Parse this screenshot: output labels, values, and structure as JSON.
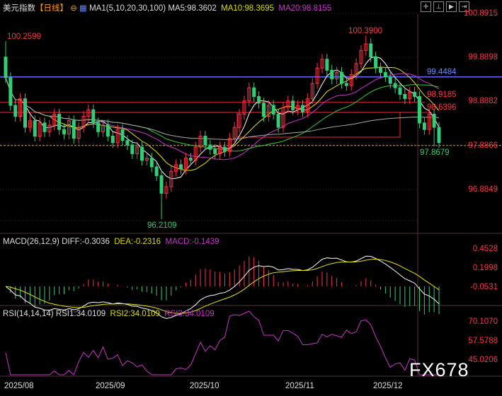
{
  "header": {
    "title": "美元指数",
    "period": "【日线】",
    "ma_label": "MA1(5,10,20,30,100)",
    "ma5": "MA5:98.3602",
    "ma10": "MA10:98.3695",
    "ma20": "MA20:98.8155",
    "buttons": [
      "crosshair",
      "fit",
      "play",
      "next"
    ]
  },
  "macd_header": {
    "label": "MACD(26,12,9)",
    "diff": "DIFF:-0.3036",
    "dea": "DEA:-0.2316",
    "macd": "MACD:-0.1439"
  },
  "rsi_header": {
    "label": "RSI(14,14,14)",
    "rsi1": "RSI1:34.0109",
    "rsi2": "RSI2:34.0109",
    "rsi3": "RSI3:34.0109"
  },
  "colors": {
    "up": "#ff3344",
    "down": "#33cc77",
    "ma5": "#ffffff",
    "ma10": "#e6e600",
    "ma20": "#cc33cc",
    "ma30": "#33cc33",
    "ma100": "#aaaaaa",
    "blue_line": "#6666ff"
  },
  "chart_data": {
    "type": "candlestick",
    "price_axis": [
      "100.8915",
      "99.8898",
      "98.8882",
      "97.8866",
      "96.8849"
    ],
    "ylim": [
      95.9,
      101.1
    ],
    "closes": [
      99.43,
      98.8,
      98.55,
      98.95,
      98.3,
      98.45,
      98.1,
      98.4,
      98.2,
      98.35,
      98.6,
      98.25,
      98.15,
      98.45,
      98.05,
      98.3,
      98.55,
      98.7,
      98.4,
      98.2,
      98.35,
      98.1,
      97.95,
      98.25,
      98.0,
      97.9,
      97.7,
      97.85,
      97.55,
      97.6,
      97.4,
      97.2,
      96.8,
      96.95,
      97.3,
      97.45,
      97.35,
      97.6,
      97.55,
      97.85,
      98.1,
      97.9,
      97.8,
      97.7,
      97.85,
      97.75,
      98.05,
      98.3,
      98.6,
      98.9,
      99.2,
      99.0,
      98.85,
      98.55,
      98.8,
      98.6,
      98.3,
      98.75,
      98.9,
      98.7,
      98.8,
      98.65,
      98.95,
      99.3,
      99.65,
      99.85,
      99.6,
      99.4,
      99.55,
      99.3,
      99.25,
      99.5,
      99.75,
      100.05,
      100.2,
      99.9,
      99.65,
      99.55,
      99.45,
      99.3,
      99.2,
      99.05,
      98.95,
      99.1,
      99.0,
      98.4,
      98.25,
      98.6,
      98.3,
      97.95
    ],
    "annotations": {
      "high_left": "100.2599",
      "high_right": "100.3900",
      "low": "96.2109",
      "recent_low": "97.8679",
      "blue_level": "99.4484",
      "red_level_1": "98.9185",
      "red_level_2": "98.6396",
      "current": "97.8866"
    },
    "macd_axis": [
      "0.4528",
      "0.1998",
      "-0.0531"
    ],
    "rsi_axis": [
      "70.1070",
      "57.5788",
      "45.0206"
    ],
    "dates": [
      "2025/08",
      "2025/09",
      "2025/10",
      "2025/11",
      "2025/12"
    ]
  },
  "watermark": "FX678"
}
